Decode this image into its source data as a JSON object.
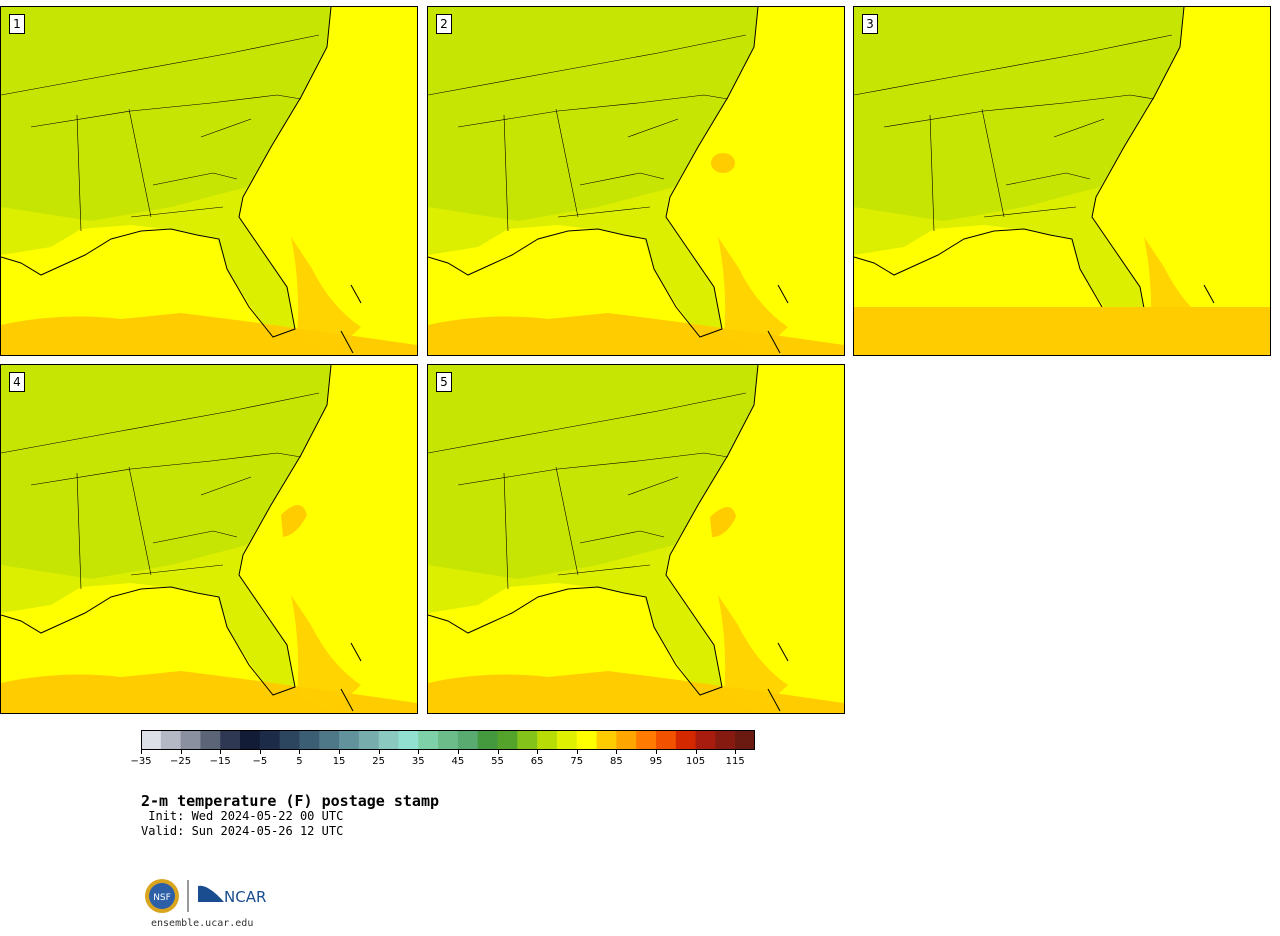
{
  "panels": [
    {
      "label": "1"
    },
    {
      "label": "2"
    },
    {
      "label": "3"
    },
    {
      "label": "4"
    },
    {
      "label": "5"
    }
  ],
  "colors": {
    "land_dark": "#52a22c",
    "land_mid": "#84c31a",
    "land_light": "#b6dc06",
    "land_lighter": "#dcef00",
    "sea_yellow": "#ffff00",
    "sea_orange": "#ffcc00",
    "border": "#000000"
  },
  "colorbar": {
    "colors": [
      "#dde0e6",
      "#b4b8c4",
      "#8a90a0",
      "#5c6478",
      "#2e3852",
      "#121c36",
      "#1c2c48",
      "#2c4660",
      "#3c5e74",
      "#4e7888",
      "#62939c",
      "#78adae",
      "#8ac8c0",
      "#92e0d0",
      "#7ed0a8",
      "#6cbc8a",
      "#58aa70",
      "#44983e",
      "#54a42c",
      "#84c31a",
      "#b8dc06",
      "#dff000",
      "#ffff00",
      "#ffcc00",
      "#ffa500",
      "#ff7a00",
      "#f25200",
      "#d42800",
      "#a81c10",
      "#841a10",
      "#6a1a10"
    ],
    "min": -35,
    "max": 120,
    "ticks": [
      "−35",
      "−25",
      "−15",
      "−5",
      "5",
      "15",
      "25",
      "35",
      "45",
      "55",
      "65",
      "75",
      "85",
      "95",
      "105",
      "115"
    ]
  },
  "title": "2-m temperature (F) postage stamp",
  "init": " Init: Wed 2024-05-22 00 UTC",
  "valid": "Valid: Sun 2024-05-26 12 UTC",
  "logos": {
    "nsf": "NSF",
    "ncar": "NCAR"
  },
  "site": "ensemble.ucar.edu"
}
